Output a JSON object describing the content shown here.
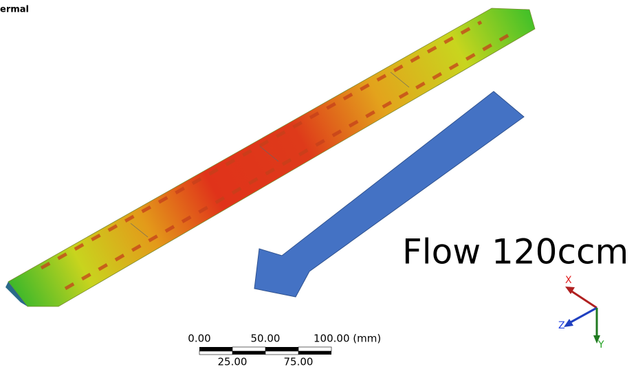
{
  "header": {
    "title": "ermal"
  },
  "annotation": {
    "text": "Flow 120ccm"
  },
  "scale_bar": {
    "top_labels": [
      "0.00",
      "50.00",
      "100.00 (mm)"
    ],
    "bottom_labels": [
      "25.00",
      "75.00"
    ]
  },
  "triad": {
    "x": "X",
    "y": "Y",
    "z": "Z"
  }
}
